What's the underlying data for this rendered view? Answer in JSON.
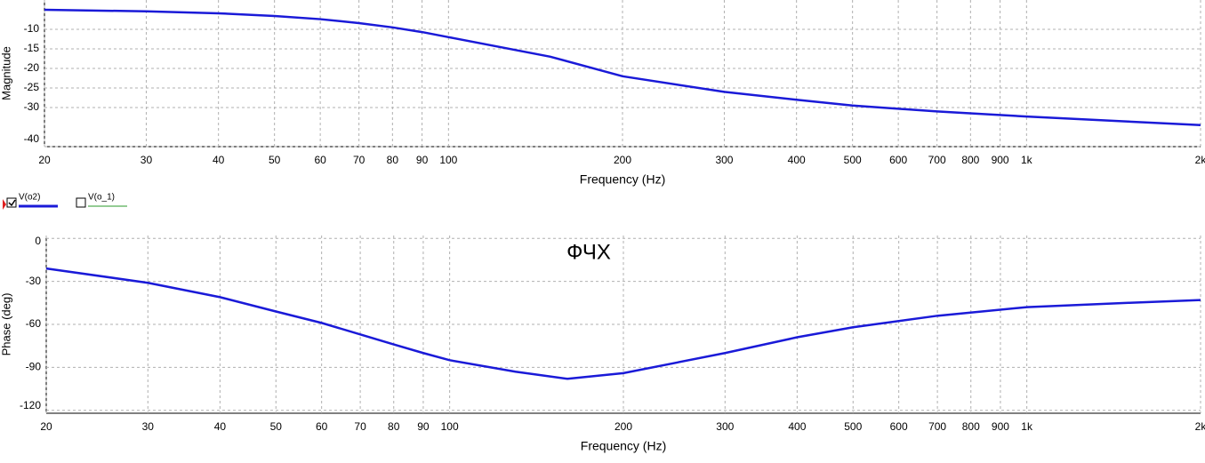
{
  "chart_data": [
    {
      "type": "line",
      "ylabel": "Magnitude",
      "xlabel": "Frequency (Hz)",
      "xscale": "log",
      "grid": true,
      "xlim": [
        20,
        2000
      ],
      "ylim": [
        -40,
        -2.5
      ],
      "xticks": [
        20,
        30,
        40,
        50,
        60,
        70,
        80,
        90,
        100,
        200,
        300,
        400,
        500,
        600,
        700,
        800,
        900,
        {
          "value": 1000,
          "label": "1k"
        },
        {
          "value": 2000,
          "label": "2k"
        }
      ],
      "yticks": [
        -40,
        -30,
        -25,
        -20,
        -15,
        -10
      ],
      "x": [
        20,
        30,
        40,
        50,
        60,
        70,
        80,
        90,
        100,
        150,
        200,
        300,
        400,
        500,
        700,
        1000,
        2000
      ],
      "series": [
        {
          "name": "V(o2)",
          "color": "#1a1ad8",
          "values": [
            -5,
            -5.4,
            -5.9,
            -6.6,
            -7.4,
            -8.4,
            -9.5,
            -10.7,
            -12,
            -17,
            -22,
            -26,
            -28,
            -29.5,
            -31,
            -32.3,
            -34.5
          ]
        }
      ]
    },
    {
      "type": "line",
      "title": "ФЧХ",
      "ylabel": "Phase (deg)",
      "xlabel": "Frequency (Hz)",
      "xscale": "log",
      "grid": true,
      "xlim": [
        20,
        2000
      ],
      "ylim": [
        -122,
        2
      ],
      "xticks": [
        20,
        30,
        40,
        50,
        60,
        70,
        80,
        90,
        100,
        200,
        300,
        400,
        500,
        600,
        700,
        800,
        900,
        {
          "value": 1000,
          "label": "1k"
        },
        {
          "value": 2000,
          "label": "2k"
        }
      ],
      "yticks": [
        0,
        -30,
        -60,
        -90,
        -120
      ],
      "x": [
        20,
        30,
        40,
        50,
        60,
        70,
        80,
        90,
        100,
        130,
        160,
        200,
        300,
        400,
        500,
        700,
        1000,
        1500,
        2000
      ],
      "series": [
        {
          "name": "V(o2)",
          "color": "#1a1ad8",
          "values": [
            -21,
            -31,
            -41,
            -51,
            -59,
            -67,
            -74,
            -80,
            -85,
            -93,
            -98,
            -94,
            -80,
            -69,
            -62,
            -54,
            -48,
            -45,
            -43
          ]
        }
      ]
    }
  ],
  "legend": [
    {
      "name": "V(o2)",
      "color": "#1a1ad8",
      "checked": true
    },
    {
      "name": "V(o_1)",
      "color": "#2a9a2a",
      "checked": false
    }
  ]
}
